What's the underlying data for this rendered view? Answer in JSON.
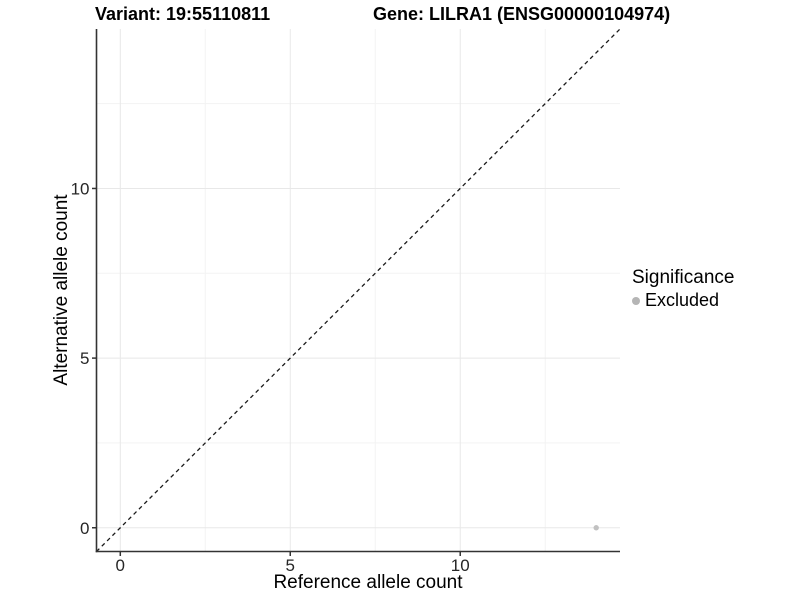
{
  "chart_data": {
    "type": "scatter",
    "title_left": "Variant: 19:55110811",
    "title_right": "Gene: LILRA1 (ENSG00000104974)",
    "xlabel": "Reference allele count",
    "ylabel": "Alternative allele count",
    "xlim": [
      -0.7,
      14.7
    ],
    "ylim": [
      -0.7,
      14.7
    ],
    "x_ticks": [
      0,
      5,
      10
    ],
    "y_ticks": [
      0,
      5,
      10
    ],
    "x_minor_ticks": [
      2.5,
      7.5,
      12.5
    ],
    "y_minor_ticks": [
      2.5,
      7.5,
      12.5
    ],
    "grid": "major and minor gridlines on, white background",
    "reference_line": {
      "kind": "identity",
      "slope": 1,
      "intercept": 0,
      "style": "dashed",
      "color": "#1a1a1a"
    },
    "series": [
      {
        "name": "Excluded",
        "color": "#c1c1c1",
        "points": [
          {
            "x": 14,
            "y": 0
          }
        ]
      }
    ],
    "legend": {
      "title": "Significance",
      "position": "right",
      "entries": [
        {
          "label": "Excluded",
          "color": "#b5b5b5",
          "marker": "circle"
        }
      ]
    }
  },
  "colors": {
    "background": "#ffffff",
    "axis_line": "#333333",
    "tick_mark": "#333333",
    "tick_label": "#262626",
    "grid_major": "#e8e8e8",
    "grid_minor": "#f3f3f3",
    "point": "#c1c1c1",
    "dashed_line": "#1a1a1a"
  }
}
